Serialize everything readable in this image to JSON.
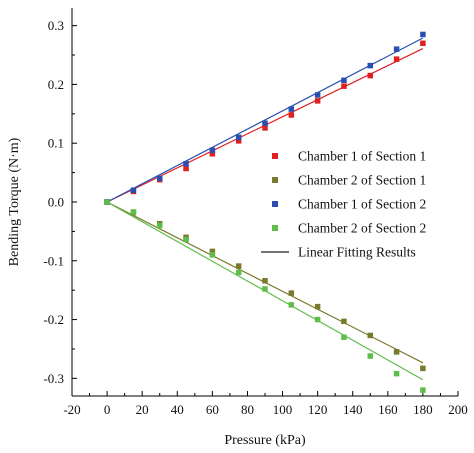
{
  "chart_data": {
    "type": "scatter",
    "title": "",
    "xlabel": "Pressure (kPa)",
    "ylabel": "Bending Torque (N·m)",
    "xlim": [
      -20,
      200
    ],
    "ylim": [
      -0.33,
      0.33
    ],
    "xticks": [
      -20,
      0,
      20,
      40,
      60,
      80,
      100,
      120,
      140,
      160,
      180,
      200
    ],
    "xtick_labels": [
      "-20",
      "0",
      "20",
      "40",
      "60",
      "80",
      "100",
      "120",
      "140",
      "160",
      "180",
      "200"
    ],
    "yticks": [
      -0.3,
      -0.2,
      -0.1,
      0.0,
      0.1,
      0.2,
      0.3
    ],
    "ytick_labels": [
      "-0.3",
      "-0.2",
      "-0.1",
      "0.0",
      "0.1",
      "0.2",
      "0.3"
    ],
    "legend_position": "right",
    "series": [
      {
        "name": "Chamber 1 of Section 1",
        "color": "#e02020",
        "x": [
          0,
          15,
          30,
          45,
          60,
          75,
          90,
          105,
          120,
          135,
          150,
          165,
          180
        ],
        "y": [
          0.0,
          0.018,
          0.038,
          0.057,
          0.082,
          0.104,
          0.126,
          0.148,
          0.172,
          0.197,
          0.215,
          0.243,
          0.27
        ]
      },
      {
        "name": "Chamber 2 of Section 1",
        "color": "#7a7a2e",
        "x": [
          0,
          15,
          30,
          45,
          60,
          75,
          90,
          105,
          120,
          135,
          150,
          165,
          180
        ],
        "y": [
          0.0,
          -0.018,
          -0.037,
          -0.06,
          -0.084,
          -0.109,
          -0.134,
          -0.155,
          -0.178,
          -0.203,
          -0.227,
          -0.255,
          -0.283
        ]
      },
      {
        "name": "Chamber 1 of Section 2",
        "color": "#2a4fb0",
        "x": [
          0,
          15,
          30,
          45,
          60,
          75,
          90,
          105,
          120,
          135,
          150,
          165,
          180
        ],
        "y": [
          0.0,
          0.02,
          0.04,
          0.065,
          0.088,
          0.11,
          0.134,
          0.158,
          0.182,
          0.207,
          0.232,
          0.26,
          0.285
        ]
      },
      {
        "name": "Chamber 2 of Section 2",
        "color": "#5fbe4a",
        "x": [
          0,
          15,
          30,
          45,
          60,
          75,
          90,
          105,
          120,
          135,
          150,
          165,
          180
        ],
        "y": [
          0.0,
          -0.017,
          -0.04,
          -0.064,
          -0.09,
          -0.12,
          -0.148,
          -0.175,
          -0.2,
          -0.23,
          -0.262,
          -0.292,
          -0.32
        ]
      }
    ],
    "fit_lines": [
      {
        "color": "#e02020",
        "slope": 0.00145
      },
      {
        "color": "#7a7a2e",
        "slope": -0.00152
      },
      {
        "color": "#2a4fb0",
        "slope": 0.00155
      },
      {
        "color": "#5fbe4a",
        "slope": -0.00168
      }
    ],
    "fit_legend": {
      "name": "Linear Fitting Results",
      "color": "#222222"
    }
  }
}
